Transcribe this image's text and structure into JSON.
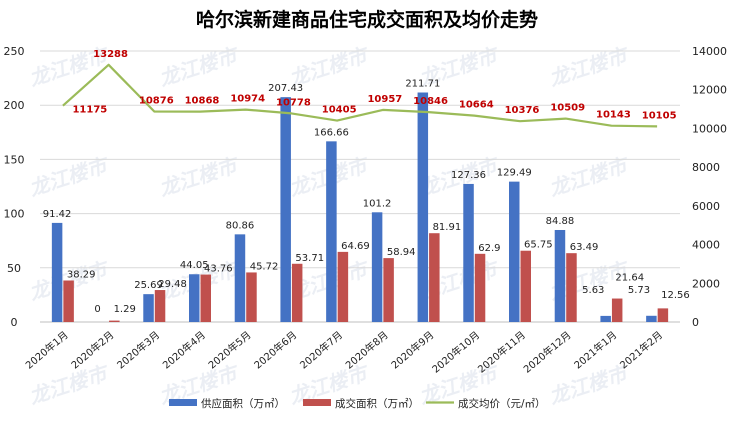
{
  "chart_data": {
    "type": "bar",
    "title": "哈尔滨新建商品住宅成交面积及均价走势",
    "categories": [
      "2020年1月",
      "2020年2月",
      "2020年3月",
      "2020年4月",
      "2020年5月",
      "2020年6月",
      "2020年7月",
      "2020年8月",
      "2020年9月",
      "2020年10月",
      "2020年11月",
      "2020年12月",
      "2021年1月",
      "2021年2月"
    ],
    "series": [
      {
        "name": "供应面积（万㎡）",
        "type": "bar",
        "axis": "left",
        "color": "#4472c4",
        "values": [
          91.42,
          0,
          25.69,
          44.05,
          80.86,
          207.43,
          166.66,
          101.2,
          211.71,
          127.36,
          129.49,
          84.88,
          5.63,
          5.73
        ]
      },
      {
        "name": "成交面积（万㎡）",
        "type": "bar",
        "axis": "left",
        "color": "#c0504d",
        "values": [
          38.29,
          1.29,
          29.48,
          43.76,
          45.72,
          53.71,
          64.69,
          58.94,
          81.91,
          62.9,
          65.75,
          63.49,
          21.64,
          12.56
        ]
      },
      {
        "name": "成交均价（元/㎡）",
        "type": "line",
        "axis": "right",
        "color": "#9bbb59",
        "values": [
          11175,
          13288,
          10876,
          10868,
          10974,
          10778,
          10405,
          10957,
          10846,
          10664,
          10376,
          10509,
          10143,
          10105
        ]
      }
    ],
    "ylim_left": [
      0,
      250
    ],
    "yticks_left": [
      0,
      50,
      100,
      150,
      200,
      250
    ],
    "ylim_right": [
      0,
      14000
    ],
    "yticks_right": [
      0,
      2000,
      4000,
      6000,
      8000,
      10000,
      12000,
      14000
    ],
    "grid": true,
    "legend_position": "bottom"
  },
  "watermark": "龙江楼市"
}
